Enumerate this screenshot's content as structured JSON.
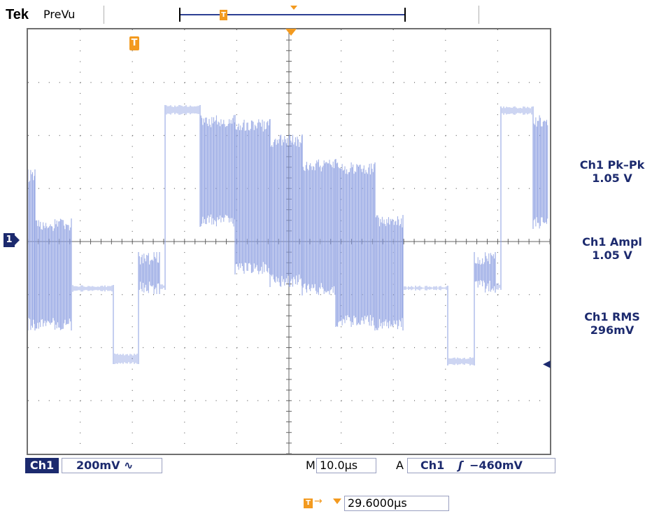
{
  "header": {
    "brand": "Tek",
    "mode": "PreVu",
    "record_trigger_marker": "T"
  },
  "screen": {
    "trigger_marker": "T",
    "channel_marker": "1",
    "trace_color": "#8a9ce0",
    "grid_color": "#666666",
    "divisions_x": 10,
    "divisions_y": 8
  },
  "measurements": [
    {
      "label": "Ch1 Pk–Pk",
      "value": "1.05 V"
    },
    {
      "label": "Ch1 Ampl",
      "value": "1.05 V"
    },
    {
      "label": "Ch1 RMS",
      "value": "296mV"
    }
  ],
  "readout": {
    "channel": "Ch1",
    "scale": "200mV",
    "bandwidth_icon": "∿",
    "time_label": "M",
    "time_per_div": "10.0μs",
    "acq_label": "A",
    "trigger_source": "Ch1",
    "trigger_slope": "ʃ",
    "trigger_level": "−460mV",
    "delay_icon": "T",
    "delay_arrow": "→",
    "delay": "29.6000μs"
  }
}
